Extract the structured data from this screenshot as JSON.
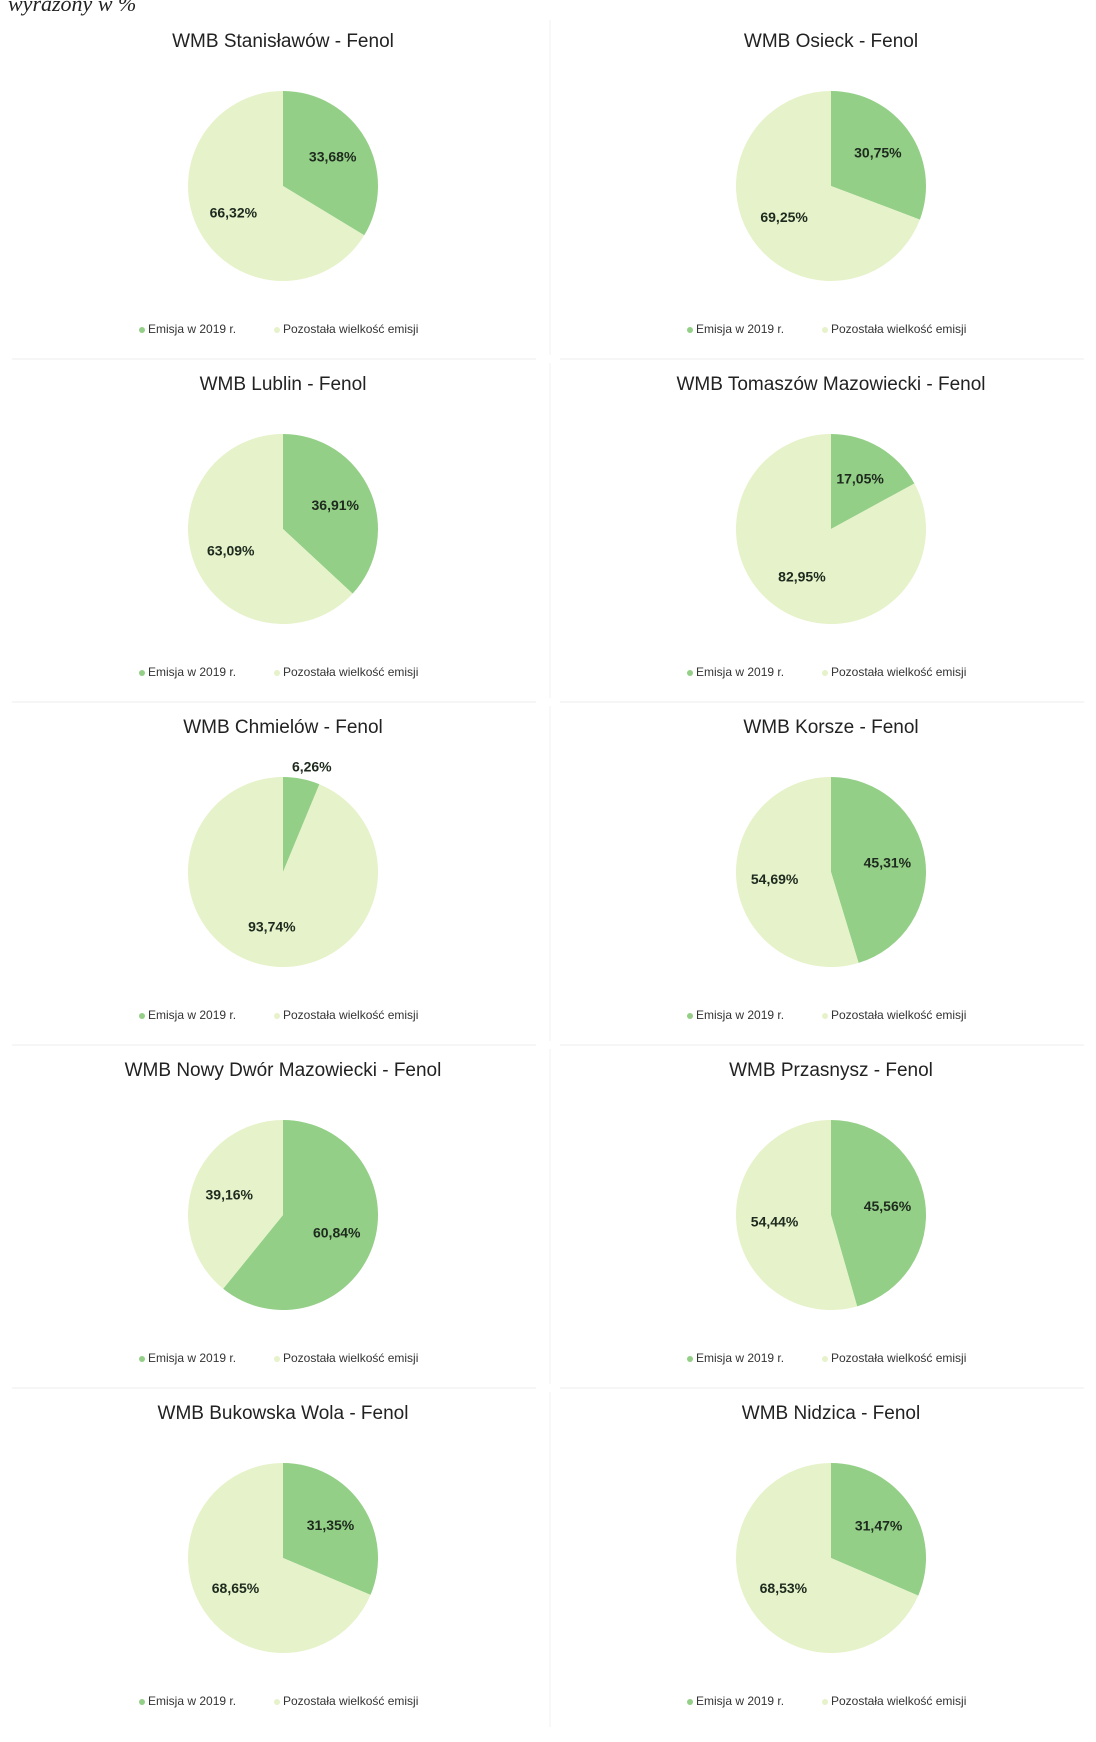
{
  "header": "wyrażony w %",
  "chart_data": [
    {
      "type": "pie",
      "title": "WMB Stanisławów - Fenol",
      "categories": [
        "Emisja w 2019 r.",
        "Pozostała wielkość emisji"
      ],
      "values": [
        33.68,
        66.32
      ],
      "value_labels": [
        "33,68%",
        "66,32%"
      ],
      "colors": [
        "#93cf86",
        "#e6f2c9"
      ]
    },
    {
      "type": "pie",
      "title": "WMB Osieck - Fenol",
      "categories": [
        "Emisja w 2019 r.",
        "Pozostała wielkość emisji"
      ],
      "values": [
        30.75,
        69.25
      ],
      "value_labels": [
        "30,75%",
        "69,25%"
      ],
      "colors": [
        "#93cf86",
        "#e6f2c9"
      ]
    },
    {
      "type": "pie",
      "title": "WMB Lublin - Fenol",
      "categories": [
        "Emisja w 2019 r.",
        "Pozostała wielkość emisji"
      ],
      "values": [
        36.91,
        63.09
      ],
      "value_labels": [
        "36,91%",
        "63,09%"
      ],
      "colors": [
        "#93cf86",
        "#e6f2c9"
      ]
    },
    {
      "type": "pie",
      "title": "WMB Tomaszów Mazowiecki - Fenol",
      "categories": [
        "Emisja w 2019 r.",
        "Pozostała wielkość emisji"
      ],
      "values": [
        17.05,
        82.95
      ],
      "value_labels": [
        "17,05%",
        "82,95%"
      ],
      "colors": [
        "#93cf86",
        "#e6f2c9"
      ]
    },
    {
      "type": "pie",
      "title": "WMB Chmielów - Fenol",
      "categories": [
        "Emisja w 2019 r.",
        "Pozostała wielkość emisji"
      ],
      "values": [
        6.26,
        93.74
      ],
      "value_labels": [
        "6,26%",
        "93,74%"
      ],
      "colors": [
        "#93cf86",
        "#e6f2c9"
      ]
    },
    {
      "type": "pie",
      "title": "WMB Korsze - Fenol",
      "categories": [
        "Emisja w 2019 r.",
        "Pozostała wielkość emisji"
      ],
      "values": [
        45.31,
        54.69
      ],
      "value_labels": [
        "45,31%",
        "54,69%"
      ],
      "colors": [
        "#93cf86",
        "#e6f2c9"
      ]
    },
    {
      "type": "pie",
      "title": "WMB Nowy Dwór Mazowiecki - Fenol",
      "categories": [
        "Emisja w 2019 r.",
        "Pozostała wielkość emisji"
      ],
      "values": [
        60.84,
        39.16
      ],
      "value_labels": [
        "60,84%",
        "39,16%"
      ],
      "colors": [
        "#93cf86",
        "#e6f2c9"
      ]
    },
    {
      "type": "pie",
      "title": "WMB Przasnysz - Fenol",
      "categories": [
        "Emisja w 2019 r.",
        "Pozostała wielkość emisji"
      ],
      "values": [
        45.56,
        54.44
      ],
      "value_labels": [
        "45,56%",
        "54,44%"
      ],
      "colors": [
        "#93cf86",
        "#e6f2c9"
      ]
    },
    {
      "type": "pie",
      "title": "WMB Bukowska Wola - Fenol",
      "categories": [
        "Emisja w 2019 r.",
        "Pozostała wielkość emisji"
      ],
      "values": [
        31.35,
        68.65
      ],
      "value_labels": [
        "31,35%",
        "68,65%"
      ],
      "colors": [
        "#93cf86",
        "#e6f2c9"
      ]
    },
    {
      "type": "pie",
      "title": "WMB Nidzica - Fenol",
      "categories": [
        "Emisja w 2019 r.",
        "Pozostała wielkość emisji"
      ],
      "values": [
        31.47,
        68.53
      ],
      "value_labels": [
        "31,47%",
        "68,53%"
      ],
      "colors": [
        "#93cf86",
        "#e6f2c9"
      ]
    }
  ]
}
